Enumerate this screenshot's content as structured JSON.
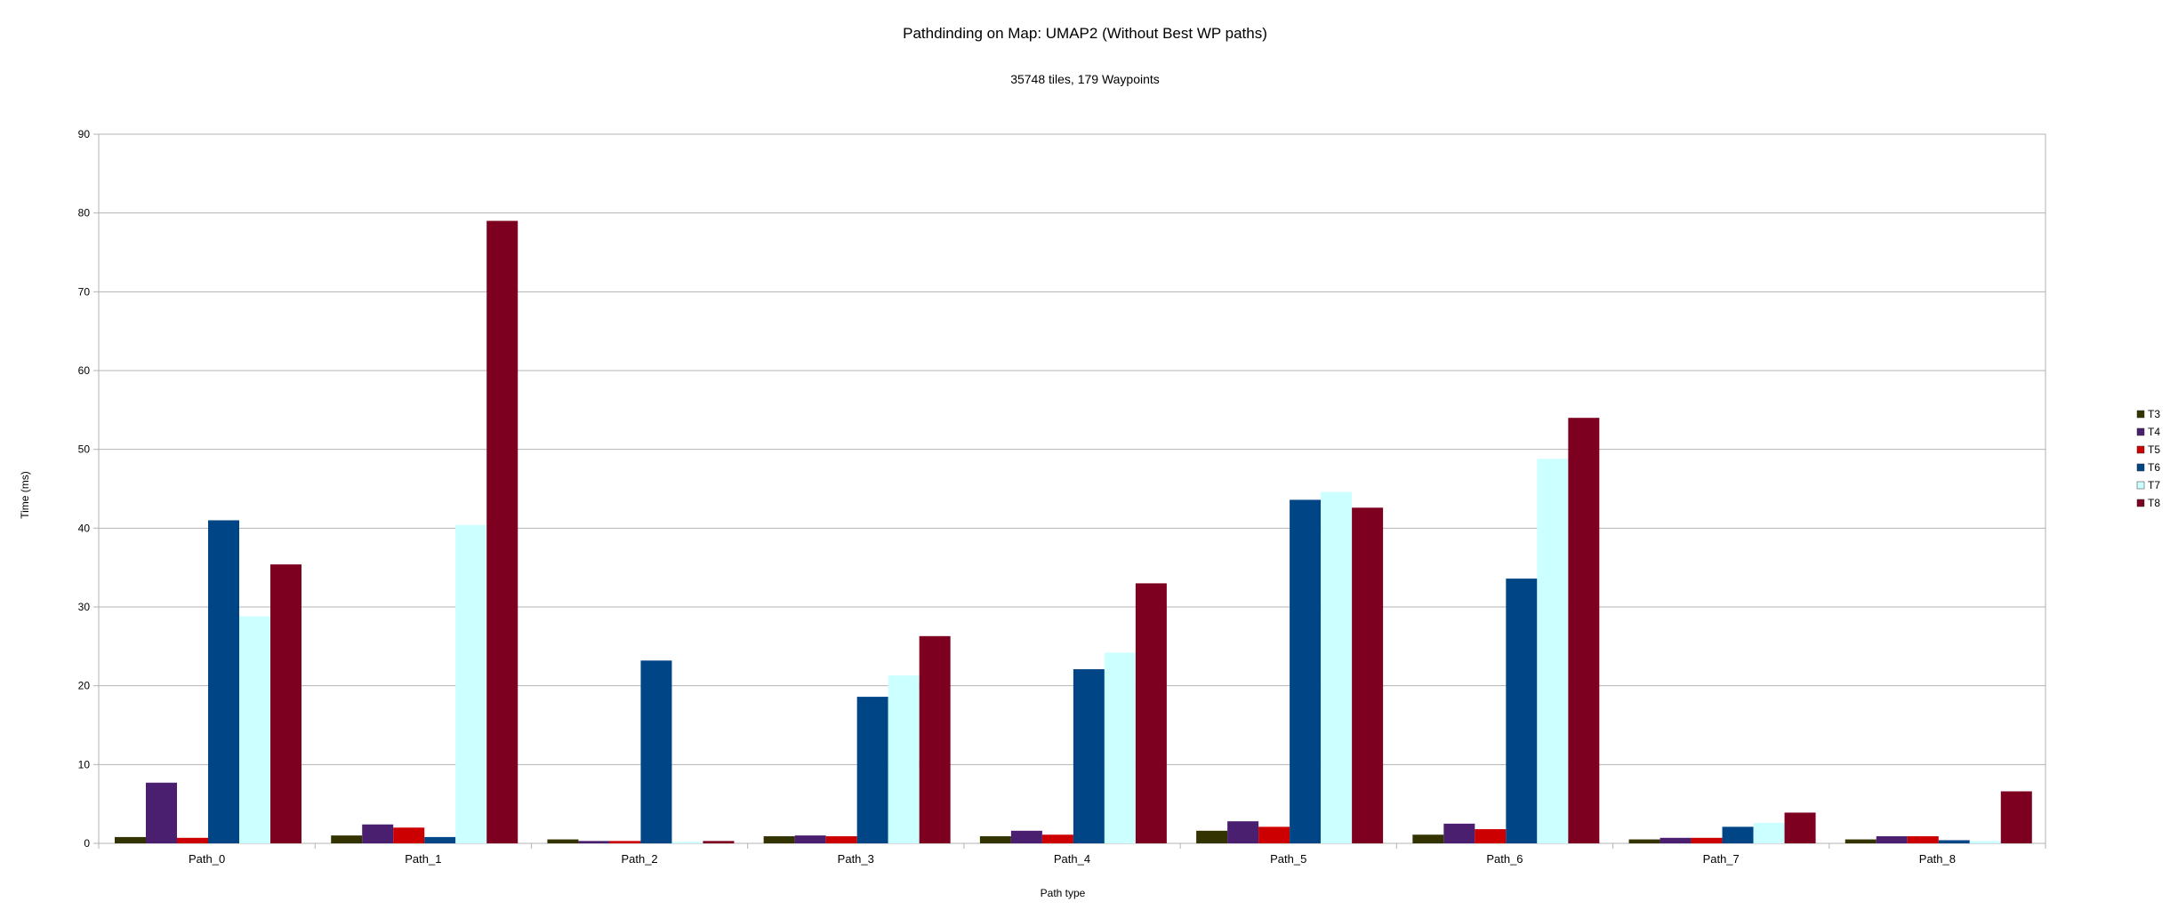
{
  "chart_data": {
    "type": "bar",
    "title": "Pathdinding on Map: UMAP2 (Without Best WP paths)",
    "subtitle": "35748 tiles, 179 Waypoints",
    "xlabel": "Path type",
    "ylabel": "Time (ms)",
    "ylim": [
      0,
      90
    ],
    "yticks": [
      0,
      10,
      20,
      30,
      40,
      50,
      60,
      70,
      80,
      90
    ],
    "grid": true,
    "legend_position": "right",
    "categories": [
      "Path_0",
      "Path_1",
      "Path_2",
      "Path_3",
      "Path_4",
      "Path_5",
      "Path_6",
      "Path_7",
      "Path_8"
    ],
    "series": [
      {
        "name": "T3",
        "color": "#333300",
        "values": [
          0.8,
          1.0,
          0.5,
          0.9,
          0.9,
          1.6,
          1.1,
          0.5,
          0.5
        ]
      },
      {
        "name": "T4",
        "color": "#4b1f6f",
        "values": [
          7.7,
          2.4,
          0.3,
          1.0,
          1.6,
          2.8,
          2.5,
          0.7,
          0.9
        ]
      },
      {
        "name": "T5",
        "color": "#cc0000",
        "values": [
          0.7,
          2.0,
          0.3,
          0.9,
          1.1,
          2.1,
          1.8,
          0.7,
          0.9
        ]
      },
      {
        "name": "T6",
        "color": "#004586",
        "values": [
          41.0,
          0.8,
          23.2,
          18.6,
          22.1,
          43.6,
          33.6,
          2.1,
          0.4
        ]
      },
      {
        "name": "T7",
        "color": "#ccffff",
        "values": [
          28.8,
          40.4,
          0.2,
          21.3,
          24.2,
          44.6,
          48.8,
          2.6,
          0.3
        ]
      },
      {
        "name": "T8",
        "color": "#7e0021",
        "values": [
          35.4,
          79.0,
          0.3,
          26.3,
          33.0,
          42.6,
          54.0,
          3.9,
          6.6
        ]
      }
    ]
  }
}
